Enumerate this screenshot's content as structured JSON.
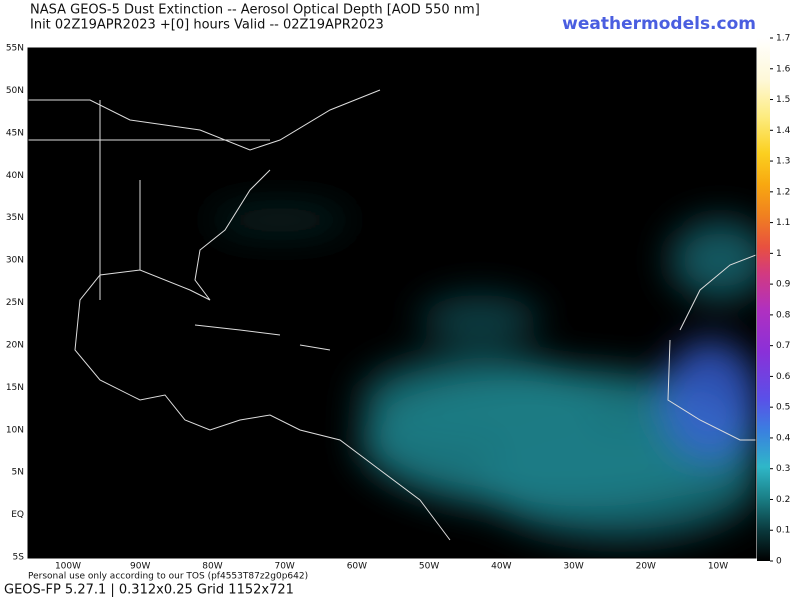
{
  "header": {
    "title": "NASA GEOS-5 Dust Extinction -- Aerosol Optical Depth [AOD 550 nm]",
    "subtitle": "Init 02Z19APR2023 +[0] hours Valid -- 02Z19APR2023",
    "brand": "weathermodels.com"
  },
  "map": {
    "lat_labels": [
      "55N",
      "50N",
      "45N",
      "40N",
      "35N",
      "30N",
      "25N",
      "20N",
      "15N",
      "10N",
      "5N",
      "EQ",
      "5S"
    ],
    "lon_labels": [
      "100W",
      "90W",
      "80W",
      "70W",
      "60W",
      "50W",
      "40W",
      "30W",
      "20W",
      "10W"
    ]
  },
  "colorbar": {
    "ticks": [
      0,
      0.1,
      0.2,
      0.3,
      0.4,
      0.5,
      0.6,
      0.7,
      0.8,
      0.9,
      1,
      1.1,
      1.2,
      1.3,
      1.4,
      1.5,
      1.6,
      1.7
    ]
  },
  "footer": {
    "tos": "Personal use only according to our TOS (pf4553T87z2g0p642)",
    "model": "GEOS-FP 5.27.1 | 0.312x0.25 Grid 1152x721"
  }
}
